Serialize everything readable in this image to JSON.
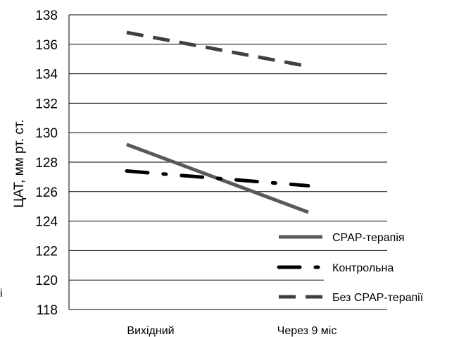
{
  "chart_data": {
    "type": "line",
    "title": "",
    "xlabel": "",
    "ylabel": "ЦАТ, мм рт. ст.",
    "categories": [
      "Вихідний",
      "Через 9 міс"
    ],
    "ylim": [
      118,
      138
    ],
    "yticks": [
      "118",
      "120",
      "122",
      "124",
      "126",
      "128",
      "130",
      "132",
      "134",
      "136",
      "138"
    ],
    "grid": true,
    "legend_position": "bottom-right",
    "series": [
      {
        "name": "СРАР-терапія",
        "values": [
          129.2,
          124.6
        ],
        "color": "#595959",
        "style": "solid"
      },
      {
        "name": "Контрольна",
        "values": [
          127.4,
          126.4
        ],
        "color": "#000000",
        "style": "dash-dot"
      },
      {
        "name": "Без СРАР-терапії",
        "values": [
          136.8,
          134.5
        ],
        "color": "#404040",
        "style": "dashed"
      }
    ]
  },
  "stray_text": "і"
}
